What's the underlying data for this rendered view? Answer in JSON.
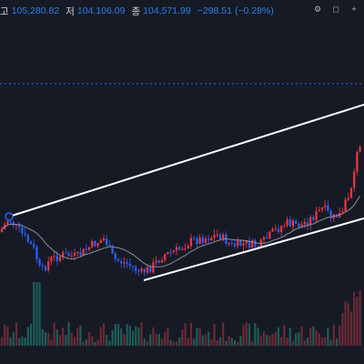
{
  "header": {
    "high_label": "고",
    "high_value": "105,280.82",
    "low_label": "저",
    "low_value": "104,106.09",
    "close_label": "종",
    "close_value": "104,571.99",
    "change": "−298.51",
    "change_pct": "(−0.28%)"
  },
  "toolbar": {
    "items": [
      {
        "name": "settings-icon",
        "glyph": "⚙"
      },
      {
        "name": "square-icon",
        "glyph": "◻"
      },
      {
        "name": "plus-icon",
        "glyph": "+"
      }
    ]
  },
  "colors": {
    "background": "#161a25",
    "up": "#f23645",
    "down": "#2962ff",
    "ma": "#8a8e99",
    "trendline": "#ffffff",
    "price_line": "#2962ff",
    "vol_up": "#6b2a35",
    "vol_down": "#1d5d57"
  }
}
